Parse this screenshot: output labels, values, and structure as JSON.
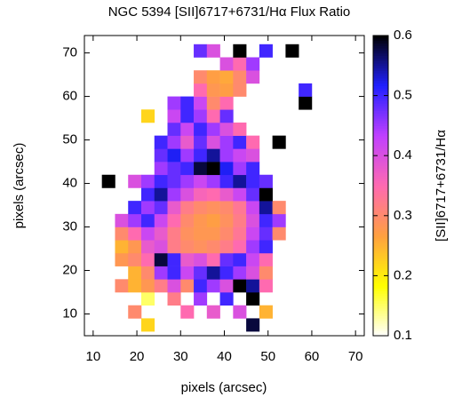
{
  "chart_data": {
    "type": "heatmap",
    "title": "NGC 5394 [SII]6717+6731/Hα Flux Ratio",
    "x_label": "pixels (arcsec)",
    "y_label": "pixels (arcsec)",
    "colorbar_label": "[SII]6717+6731/Hα",
    "x": [
      13.5,
      16.5,
      19.5,
      22.5,
      25.5,
      28.5,
      31.5,
      34.5,
      37.5,
      40.5,
      43.5,
      46.5,
      49.5,
      52.5,
      55.5,
      58.5
    ],
    "y": [
      7.5,
      10.5,
      13.5,
      16.5,
      19.5,
      22.5,
      25.5,
      28.5,
      31.5,
      34.5,
      37.5,
      40.5,
      43.5,
      46.5,
      49.5,
      52.5,
      55.5,
      58.5,
      61.5,
      64.5,
      67.5,
      70.5
    ],
    "z": [
      [
        null,
        null,
        null,
        0.22,
        null,
        null,
        null,
        null,
        null,
        null,
        null,
        0.58,
        null,
        null,
        null,
        null
      ],
      [
        null,
        null,
        0.3,
        null,
        null,
        null,
        0.35,
        null,
        0.38,
        null,
        0.4,
        null,
        0.25,
        null,
        null,
        null
      ],
      [
        null,
        null,
        null,
        0.15,
        null,
        0.32,
        null,
        0.45,
        null,
        0.5,
        null,
        0.6,
        null,
        null,
        null,
        null
      ],
      [
        null,
        0.3,
        0.25,
        0.28,
        0.32,
        0.4,
        0.3,
        0.5,
        0.45,
        0.4,
        0.6,
        0.55,
        0.35,
        null,
        null,
        null
      ],
      [
        null,
        null,
        0.25,
        0.3,
        0.45,
        0.5,
        0.42,
        0.48,
        0.55,
        0.5,
        0.45,
        0.4,
        0.3,
        null,
        null,
        null
      ],
      [
        null,
        0.28,
        0.3,
        0.35,
        0.58,
        0.5,
        0.38,
        0.4,
        0.35,
        0.48,
        0.5,
        0.42,
        0.35,
        null,
        null,
        null
      ],
      [
        null,
        0.25,
        0.28,
        0.38,
        0.4,
        0.32,
        0.3,
        0.29,
        0.3,
        0.32,
        0.35,
        0.45,
        0.5,
        null,
        null,
        null
      ],
      [
        null,
        0.3,
        0.35,
        0.42,
        0.38,
        0.32,
        0.29,
        0.28,
        0.28,
        0.3,
        0.33,
        0.42,
        0.48,
        0.3,
        null,
        null
      ],
      [
        null,
        0.4,
        0.45,
        0.5,
        0.42,
        0.35,
        0.3,
        0.28,
        0.27,
        0.29,
        0.32,
        0.4,
        0.5,
        0.45,
        null,
        null
      ],
      [
        null,
        null,
        0.5,
        0.45,
        0.48,
        0.38,
        0.32,
        0.3,
        0.29,
        0.3,
        0.33,
        0.42,
        0.55,
        0.3,
        null,
        null
      ],
      [
        null,
        null,
        null,
        0.5,
        0.55,
        0.45,
        0.4,
        0.36,
        0.35,
        0.38,
        0.42,
        0.48,
        0.6,
        null,
        null,
        null
      ],
      [
        0.6,
        null,
        0.4,
        0.45,
        0.5,
        0.48,
        0.45,
        0.42,
        0.45,
        0.5,
        0.55,
        0.5,
        0.48,
        null,
        null,
        null
      ],
      [
        null,
        null,
        null,
        null,
        0.45,
        0.48,
        0.5,
        0.58,
        0.6,
        0.52,
        0.45,
        0.5,
        null,
        null,
        null,
        null
      ],
      [
        null,
        null,
        null,
        null,
        0.48,
        0.52,
        0.45,
        0.5,
        0.55,
        0.45,
        0.42,
        0.4,
        null,
        null,
        null,
        null
      ],
      [
        null,
        null,
        null,
        null,
        0.5,
        0.45,
        0.38,
        0.48,
        0.4,
        0.45,
        0.5,
        0.35,
        null,
        0.6,
        null,
        null
      ],
      [
        null,
        null,
        null,
        null,
        null,
        0.48,
        0.42,
        0.5,
        0.45,
        0.4,
        0.35,
        null,
        null,
        null,
        null,
        null
      ],
      [
        null,
        null,
        null,
        0.22,
        null,
        0.42,
        0.5,
        0.45,
        0.35,
        0.48,
        null,
        null,
        null,
        null,
        null,
        null
      ],
      [
        null,
        null,
        null,
        null,
        null,
        0.45,
        0.5,
        0.42,
        0.3,
        0.35,
        null,
        null,
        null,
        null,
        null,
        0.6
      ],
      [
        null,
        null,
        null,
        null,
        null,
        null,
        null,
        0.35,
        0.28,
        0.27,
        0.3,
        null,
        null,
        null,
        null,
        0.5
      ],
      [
        null,
        null,
        null,
        null,
        null,
        null,
        null,
        0.3,
        0.27,
        0.26,
        0.3,
        0.4,
        null,
        null,
        null,
        null
      ],
      [
        null,
        null,
        null,
        null,
        null,
        null,
        null,
        null,
        null,
        0.4,
        0.35,
        0.45,
        null,
        null,
        null,
        null
      ],
      [
        null,
        null,
        null,
        null,
        null,
        null,
        null,
        0.48,
        0.4,
        null,
        0.6,
        null,
        0.5,
        null,
        0.6,
        null
      ]
    ],
    "xlim": [
      8,
      72
    ],
    "ylim": [
      5,
      74
    ],
    "xticks": [
      10,
      20,
      30,
      40,
      50,
      60,
      70
    ],
    "yticks": [
      10,
      20,
      30,
      40,
      50,
      60,
      70
    ],
    "clim": [
      0.1,
      0.6
    ],
    "cticks": [
      0.1,
      0.2,
      0.3,
      0.4,
      0.5,
      0.6
    ],
    "colormap": [
      "#ffffff",
      "#ffff00",
      "#ffa040",
      "#ff6ab0",
      "#c040ff",
      "#2020ff",
      "#000000"
    ]
  }
}
